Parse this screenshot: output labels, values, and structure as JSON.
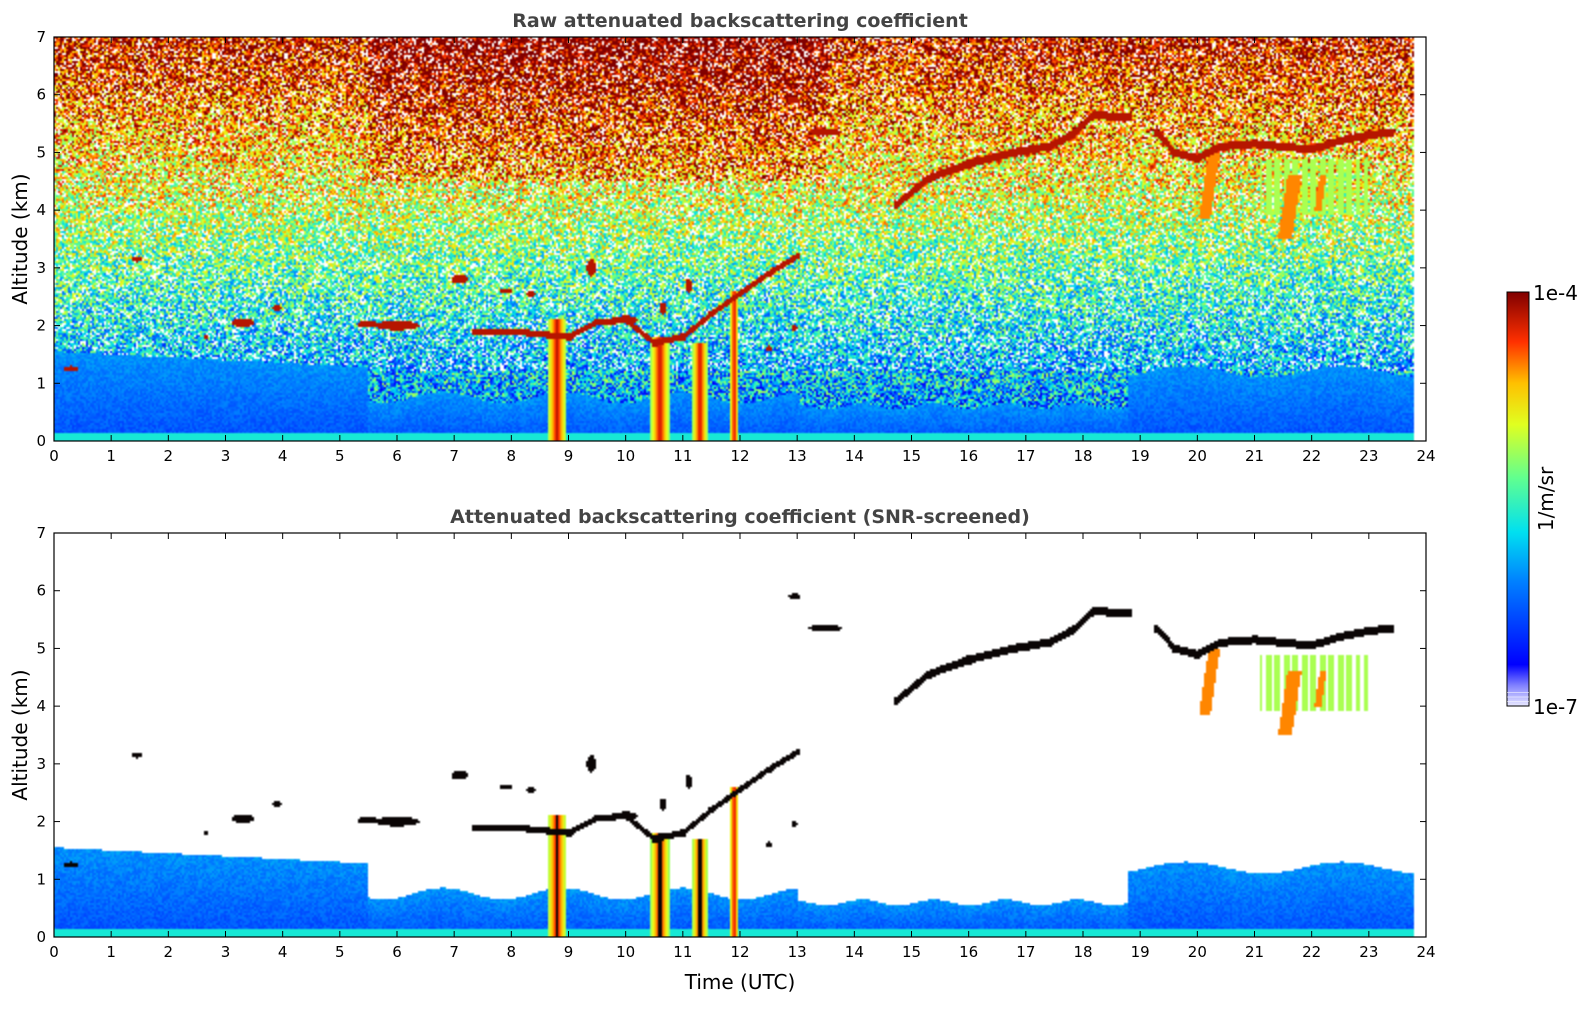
{
  "chart_data": [
    {
      "type": "heatmap",
      "title": "Raw attenuated backscattering coefficient",
      "xlabel": "",
      "ylabel": "Altitude (km)",
      "xlim": [
        0,
        24
      ],
      "ylim": [
        0,
        7
      ],
      "x_ticks": [
        "0",
        "1",
        "2",
        "3",
        "4",
        "5",
        "6",
        "7",
        "8",
        "9",
        "10",
        "11",
        "12",
        "13",
        "14",
        "15",
        "16",
        "17",
        "18",
        "19",
        "20",
        "21",
        "22",
        "23",
        "24"
      ],
      "y_ticks": [
        "0",
        "1",
        "2",
        "3",
        "4",
        "5",
        "6",
        "7"
      ],
      "screened": false
    },
    {
      "type": "heatmap",
      "title": "Attenuated backscattering coefficient (SNR-screened)",
      "xlabel": "Time (UTC)",
      "ylabel": "Altitude (km)",
      "xlim": [
        0,
        24
      ],
      "ylim": [
        0,
        7
      ],
      "x_ticks": [
        "0",
        "1",
        "2",
        "3",
        "4",
        "5",
        "6",
        "7",
        "8",
        "9",
        "10",
        "11",
        "12",
        "13",
        "14",
        "15",
        "16",
        "17",
        "18",
        "19",
        "20",
        "21",
        "22",
        "23",
        "24"
      ],
      "y_ticks": [
        "0",
        "1",
        "2",
        "3",
        "4",
        "5",
        "6",
        "7"
      ],
      "screened": true
    }
  ],
  "colorbar": {
    "label": "1/m/sr",
    "max_label": "1e-4",
    "min_label": "1e-7",
    "colormap": "jet"
  }
}
